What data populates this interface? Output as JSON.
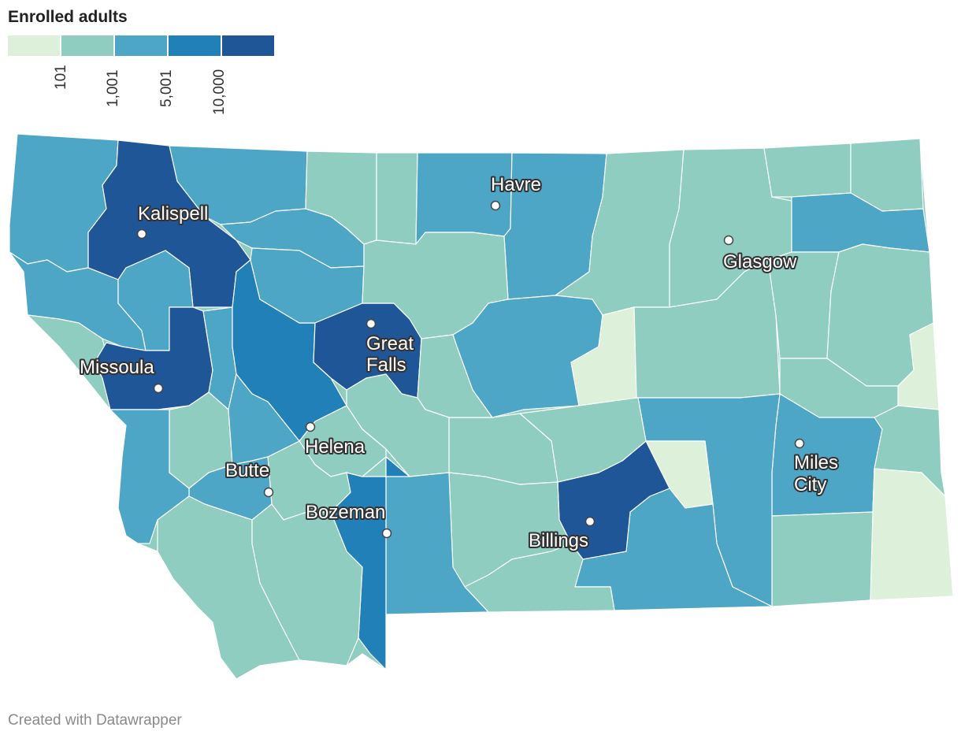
{
  "title": "Enrolled adults",
  "legend": {
    "colors": [
      "#dcf0da",
      "#8ecdbf",
      "#4ea6c6",
      "#2180b8",
      "#1f5698"
    ],
    "ticks": [
      "101",
      "1,001",
      "5,001",
      "10,000"
    ]
  },
  "cities": [
    {
      "name": "Kalispell",
      "lines": [
        "Kalispell"
      ]
    },
    {
      "name": "Havre",
      "lines": [
        "Havre"
      ]
    },
    {
      "name": "Glasgow",
      "lines": [
        "Glasgow"
      ]
    },
    {
      "name": "Great Falls",
      "lines": [
        "Great",
        "Falls"
      ]
    },
    {
      "name": "Missoula",
      "lines": [
        "Missoula"
      ]
    },
    {
      "name": "Helena",
      "lines": [
        "Helena"
      ]
    },
    {
      "name": "Butte",
      "lines": [
        "Butte"
      ]
    },
    {
      "name": "Bozeman",
      "lines": [
        "Bozeman"
      ]
    },
    {
      "name": "Billings",
      "lines": [
        "Billings"
      ]
    },
    {
      "name": "Miles City",
      "lines": [
        "Miles",
        "City"
      ]
    }
  ],
  "credit": "Created with Datawrapper"
}
